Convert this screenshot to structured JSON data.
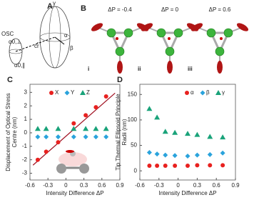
{
  "figure": {
    "panel_a": {
      "label": "A",
      "osc": "OSC",
      "alpha_perp": "α0,⊥",
      "alpha_par": "α0,∥",
      "cr": "cr̂",
      "gamma": "γ",
      "alpha": "α",
      "beta": "β"
    },
    "panel_b": {
      "label": "B",
      "states": [
        {
          "dp": "ΔP = -0.4",
          "roman": "i"
        },
        {
          "dp": "ΔP = 0",
          "roman": "ii"
        },
        {
          "dp": "ΔP = 0.6",
          "roman": "iii"
        }
      ]
    }
  },
  "chart_data": [
    {
      "type": "scatter",
      "panel": "C",
      "xlabel": "Intensity Difference ΔP",
      "ylabel": [
        "Displacement of Optical Stress",
        "Centre (nm)"
      ],
      "xlim": [
        -0.6,
        0.9
      ],
      "xticks": [
        -0.6,
        -0.3,
        0,
        0.3,
        0.6,
        0.9
      ],
      "ylim": [
        -3.5,
        3.6
      ],
      "yticks": [
        -3,
        -2,
        -1,
        0,
        1,
        2,
        3
      ],
      "x": [
        -0.47,
        -0.33,
        -0.13,
        0.13,
        0.33,
        0.5,
        0.67
      ],
      "series": [
        {
          "name": "X",
          "color": "#e8211f",
          "marker": "circle",
          "values": [
            -2.0,
            -1.4,
            -0.7,
            0.7,
            1.3,
            1.9,
            2.7
          ]
        },
        {
          "name": "Y",
          "color": "#2aa3dc",
          "marker": "diamond",
          "values": [
            -0.3,
            -0.3,
            -0.3,
            -0.3,
            -0.3,
            -0.3,
            -0.3
          ]
        },
        {
          "name": "Z",
          "color": "#1aa37a",
          "marker": "triangle",
          "values": [
            0.3,
            0.3,
            0.3,
            0.3,
            0.3,
            0.3,
            0.3
          ]
        }
      ],
      "fit": {
        "color": "#a01020",
        "x": [
          -0.55,
          0.82
        ],
        "y": [
          -2.4,
          2.95
        ]
      }
    },
    {
      "type": "scatter",
      "panel": "D",
      "xlabel": "Intensity Difference ΔP",
      "ylabel": [
        "Tip Thermal Ellipsoid Principle",
        "Radii (nm)"
      ],
      "xlim": [
        -0.6,
        0.9
      ],
      "xticks": [
        -0.6,
        -0.3,
        0,
        0.3,
        0.6,
        0.9
      ],
      "ylim": [
        -18,
        170
      ],
      "yticks": [
        0,
        50,
        100,
        150
      ],
      "x": [
        -0.45,
        -0.33,
        -0.2,
        -0.05,
        0.15,
        0.3,
        0.5,
        0.7
      ],
      "series": [
        {
          "name": "α",
          "color": "#e8211f",
          "marker": "circle",
          "values": [
            10,
            10,
            10,
            10,
            10,
            11,
            11,
            11
          ]
        },
        {
          "name": "β",
          "color": "#2aa3dc",
          "marker": "diamond",
          "values": [
            36,
            33,
            31,
            30,
            29,
            31,
            32,
            35
          ]
        },
        {
          "name": "γ",
          "color": "#1aa37a",
          "marker": "triangle",
          "values": [
            122,
            105,
            77,
            75,
            73,
            71,
            67,
            66
          ]
        }
      ]
    }
  ]
}
